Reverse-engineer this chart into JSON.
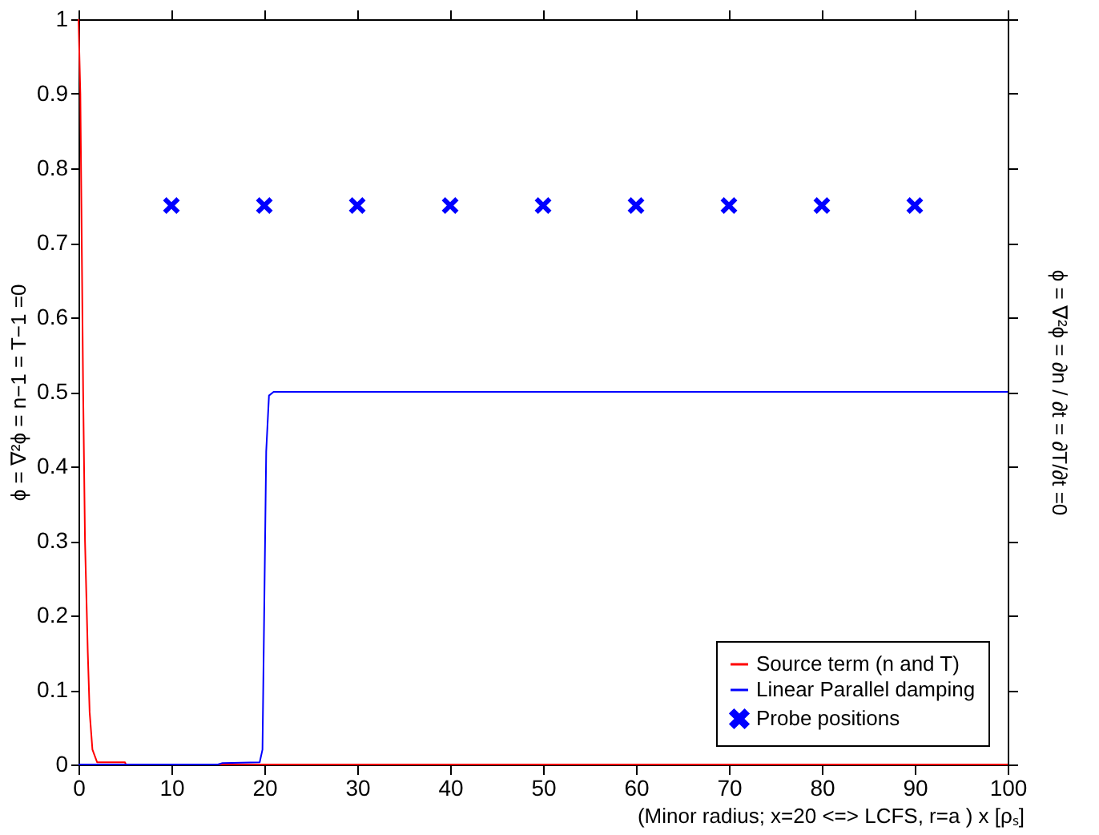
{
  "chart_data": {
    "type": "line",
    "xlabel": "(Minor radius; x=20 <=> LCFS, r=a )          x [ρₛ]",
    "ylabel": "ϕ = ∇²ϕ = n−1 = T−1 =0",
    "y2label": "ϕ = ∇²ϕ = ∂n / ∂t = ∂T/∂t =0",
    "xlim": [
      0,
      100
    ],
    "xticks": [
      0,
      10,
      20,
      30,
      40,
      50,
      60,
      70,
      80,
      90,
      100
    ],
    "ylim": [
      0,
      1
    ],
    "yticks": [
      0,
      0.1,
      0.2,
      0.3,
      0.4,
      0.5,
      0.6,
      0.7,
      0.8,
      0.9,
      1
    ],
    "grid": false,
    "legend": "bottom right",
    "line_style": "solid",
    "series": [
      {
        "name": "Source term (n and T)",
        "color": "#ff0000",
        "x": [
          0,
          0.2,
          0.5,
          0.7,
          1,
          1.2,
          1.5,
          2,
          5,
          5.1,
          100
        ],
        "values": [
          1,
          0.9,
          0.5,
          0.3,
          0.15,
          0.07,
          0.02,
          0.003,
          0.003,
          0,
          0
        ]
      },
      {
        "name": "Linear Parallel damping",
        "color": "#0000ff",
        "x": [
          0,
          15,
          15.5,
          19.5,
          19.8,
          20.2,
          20.5,
          21,
          100
        ],
        "values": [
          0,
          0,
          0.002,
          0.003,
          0.02,
          0.42,
          0.495,
          0.5,
          0.5
        ]
      },
      {
        "name": "Probe positions",
        "type": "scatter",
        "marker": "cross",
        "color": "#0000ff",
        "x": [
          10,
          20,
          30,
          40,
          50,
          60,
          70,
          80,
          90
        ],
        "values": [
          0.75,
          0.75,
          0.75,
          0.75,
          0.75,
          0.75,
          0.75,
          0.75,
          0.75
        ]
      }
    ]
  }
}
